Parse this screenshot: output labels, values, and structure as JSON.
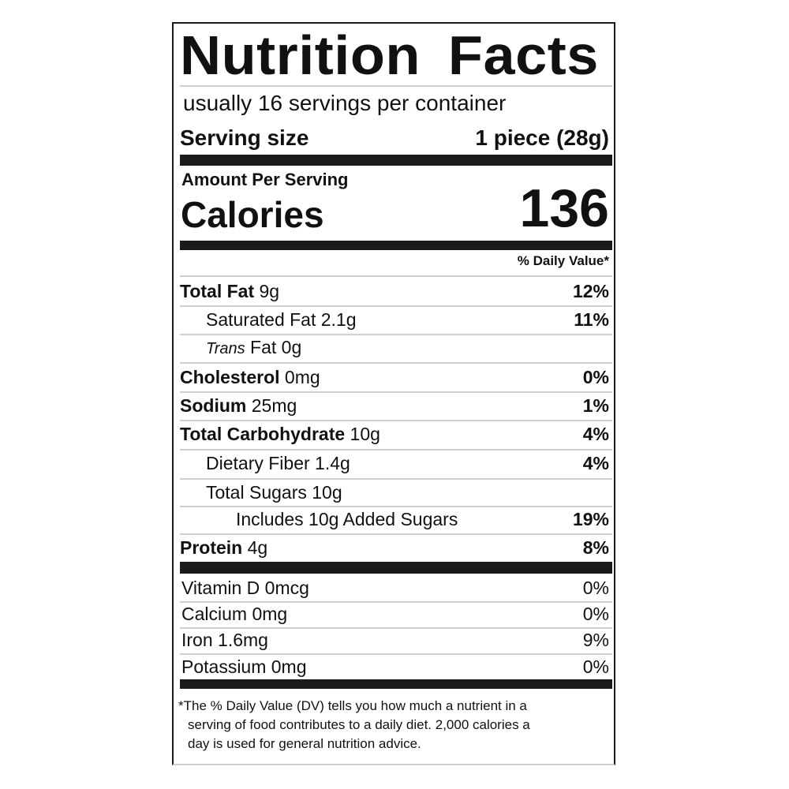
{
  "title": "Nutrition Facts",
  "servings_per_container": "usually 16 servings per container",
  "serving_size": {
    "label": "Serving size",
    "value": "1 piece (28g)"
  },
  "amount_per_serving": "Amount Per Serving",
  "calories": {
    "label": "Calories",
    "value": "136"
  },
  "daily_value_header": "% Daily Value*",
  "nutrients": [
    {
      "name": "Total Fat",
      "amount": "9g",
      "dv": "12%",
      "bold": true,
      "indent": 0
    },
    {
      "name": "Saturated Fat",
      "amount": "2.1g",
      "dv": "11%",
      "bold": false,
      "indent": 1
    },
    {
      "name": "Trans",
      "name_suffix": "Fat",
      "amount": "0g",
      "dv": "",
      "bold": false,
      "indent": 1,
      "italic_prefix": true
    },
    {
      "name": "Cholesterol",
      "amount": "0mg",
      "dv": "0%",
      "bold": true,
      "indent": 0
    },
    {
      "name": "Sodium",
      "amount": "25mg",
      "dv": "1%",
      "bold": true,
      "indent": 0
    },
    {
      "name": "Total Carbohydrate",
      "amount": "10g",
      "dv": "4%",
      "bold": true,
      "indent": 0
    },
    {
      "name": "Dietary Fiber",
      "amount": "1.4g",
      "dv": "4%",
      "bold": false,
      "indent": 1
    },
    {
      "name": "Total Sugars",
      "amount": "10g",
      "dv": "",
      "bold": false,
      "indent": 1
    },
    {
      "name": "Includes 10g Added Sugars",
      "amount": "",
      "dv": "19%",
      "bold": false,
      "indent": 2
    },
    {
      "name": "Protein",
      "amount": "4g",
      "dv": "8%",
      "bold": true,
      "indent": 0
    }
  ],
  "vitamins": [
    {
      "name": "Vitamin D",
      "amount": "0mcg",
      "dv": "0%"
    },
    {
      "name": "Calcium",
      "amount": "0mg",
      "dv": "0%"
    },
    {
      "name": "Iron",
      "amount": "1.6mg",
      "dv": "9%"
    },
    {
      "name": "Potassium",
      "amount": "0mg",
      "dv": "0%"
    }
  ],
  "footnote": [
    "*The % Daily Value (DV) tells you how much a nutrient in a",
    "serving of food contributes to a daily diet. 2,000 calories a",
    "day is used for general nutrition advice."
  ]
}
